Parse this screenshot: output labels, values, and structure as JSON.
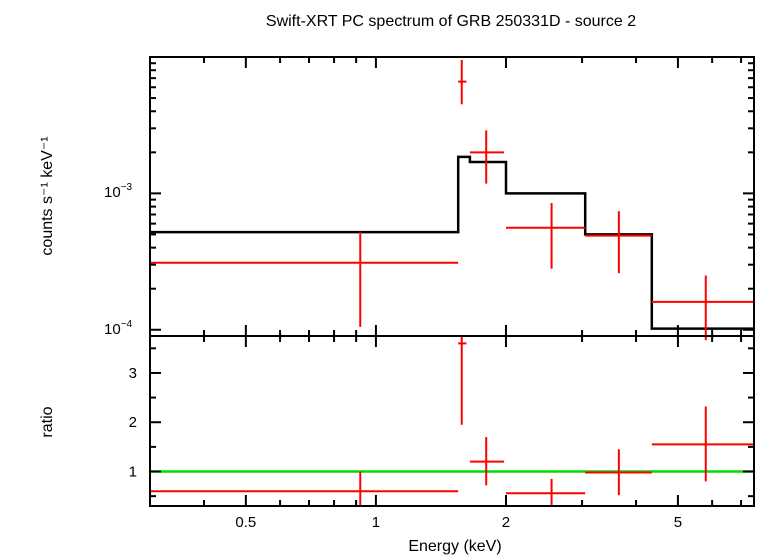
{
  "chart_data": [
    {
      "type": "scatter",
      "title": "Swift-XRT PC spectrum of GRB 250331D - source 2",
      "ylabel": "counts s⁻¹ keV⁻¹",
      "xscale": "log",
      "yscale": "log",
      "xlim": [
        0.3,
        7.5
      ],
      "ylim": [
        9e-05,
        0.01
      ],
      "ytick_labels": [
        {
          "base": "10",
          "exp": "−3",
          "value": 0.001
        },
        {
          "base": "10",
          "exp": "−4",
          "value": 0.0001
        }
      ],
      "series": [
        {
          "role": "data",
          "color": "#ff0000",
          "points": [
            {
              "x": 0.92,
              "xlo": 0.3,
              "xhi": 1.55,
              "y": 0.00031,
              "ylo": 0.000105,
              "yhi": 0.00052
            },
            {
              "x": 1.58,
              "xlo": 1.55,
              "xhi": 1.62,
              "y": 0.0066,
              "ylo": 0.0045,
              "yhi": 0.0095
            },
            {
              "x": 1.8,
              "xlo": 1.65,
              "xhi": 1.98,
              "y": 0.002,
              "ylo": 0.00118,
              "yhi": 0.0029
            },
            {
              "x": 2.55,
              "xlo": 2.0,
              "xhi": 3.05,
              "y": 0.00056,
              "ylo": 0.00028,
              "yhi": 0.00085
            },
            {
              "x": 3.65,
              "xlo": 3.05,
              "xhi": 4.35,
              "y": 0.00049,
              "ylo": 0.00026,
              "yhi": 0.00074
            },
            {
              "x": 5.8,
              "xlo": 4.35,
              "xhi": 7.5,
              "y": 0.00016,
              "ylo": 8.4e-05,
              "yhi": 0.00025
            }
          ]
        },
        {
          "role": "model",
          "color": "#000000",
          "steps": [
            {
              "xlo": 0.3,
              "xhi": 1.55,
              "y": 0.00052
            },
            {
              "xlo": 1.55,
              "xhi": 1.65,
              "y": 0.00185
            },
            {
              "xlo": 1.65,
              "xhi": 2.0,
              "y": 0.0017
            },
            {
              "xlo": 2.0,
              "xhi": 3.05,
              "y": 0.001
            },
            {
              "xlo": 3.05,
              "xhi": 4.35,
              "y": 0.0005
            },
            {
              "xlo": 4.35,
              "xhi": 7.5,
              "y": 0.000102
            }
          ]
        }
      ]
    },
    {
      "type": "scatter",
      "xlabel": "Energy (keV)",
      "ylabel": "ratio",
      "xscale": "log",
      "yscale": "linear",
      "xlim": [
        0.3,
        7.5
      ],
      "ylim": [
        0.3,
        3.75
      ],
      "x_ticks": [
        0.5,
        1,
        2,
        5
      ],
      "x_tick_labels": [
        "0.5",
        "1",
        "2",
        "5"
      ],
      "y_ticks": [
        1,
        2,
        3
      ],
      "y_tick_labels": [
        "1",
        "2",
        "3"
      ],
      "reference_line": {
        "y": 1,
        "color": "#00dd00"
      },
      "series": [
        {
          "role": "ratio",
          "color": "#ff0000",
          "points": [
            {
              "x": 0.92,
              "xlo": 0.3,
              "xhi": 1.55,
              "y": 0.6,
              "ylo": 0.3,
              "yhi": 1.0
            },
            {
              "x": 1.58,
              "xlo": 1.55,
              "xhi": 1.62,
              "y": 3.6,
              "ylo": 1.95,
              "yhi": 3.75
            },
            {
              "x": 1.8,
              "xlo": 1.65,
              "xhi": 1.98,
              "y": 1.2,
              "ylo": 0.72,
              "yhi": 1.7
            },
            {
              "x": 2.55,
              "xlo": 2.0,
              "xhi": 3.05,
              "y": 0.56,
              "ylo": 0.3,
              "yhi": 0.85
            },
            {
              "x": 3.65,
              "xlo": 3.05,
              "xhi": 4.35,
              "y": 0.98,
              "ylo": 0.52,
              "yhi": 1.45
            },
            {
              "x": 5.8,
              "xlo": 4.35,
              "xhi": 7.5,
              "y": 1.55,
              "ylo": 0.8,
              "yhi": 2.32
            }
          ]
        }
      ]
    }
  ]
}
